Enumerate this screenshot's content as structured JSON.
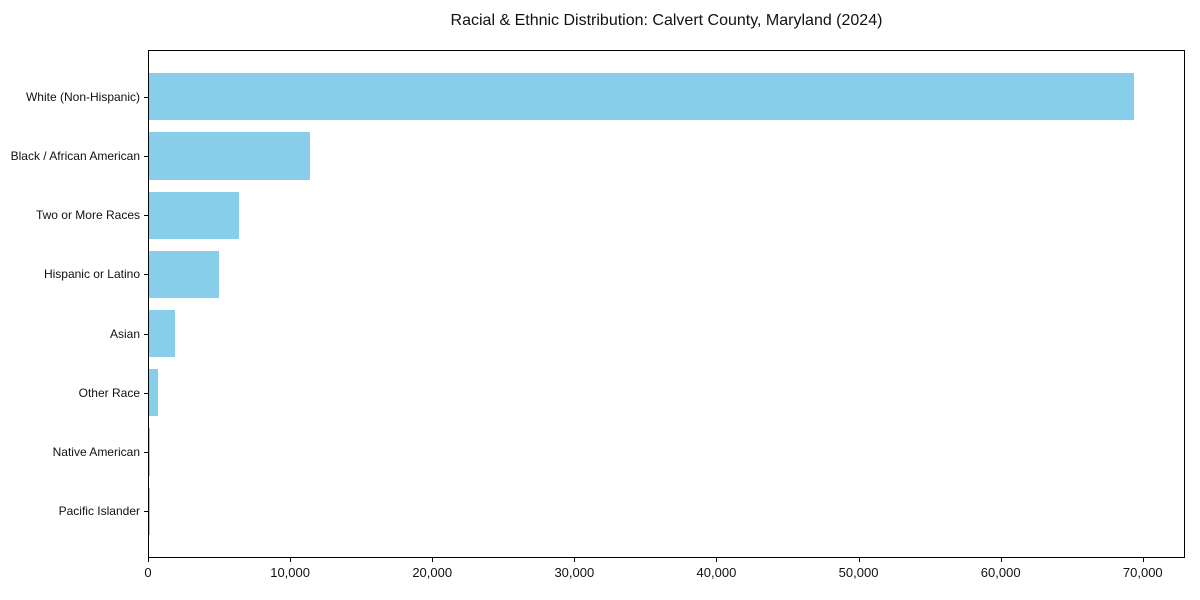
{
  "chart_data": {
    "type": "bar",
    "orientation": "horizontal",
    "title": "Racial & Ethnic Distribution: Calvert County, Maryland (2024)",
    "categories": [
      "White (Non-Hispanic)",
      "Black / African American",
      "Two or More Races",
      "Hispanic or Latino",
      "Asian",
      "Other Race",
      "Native American",
      "Pacific Islander"
    ],
    "values": [
      69400,
      11350,
      6350,
      4900,
      1850,
      600,
      90,
      30
    ],
    "x_ticks": [
      0,
      10000,
      20000,
      30000,
      40000,
      50000,
      60000,
      70000
    ],
    "x_tick_labels": [
      "0",
      "10,000",
      "20,000",
      "30,000",
      "40,000",
      "50,000",
      "60,000",
      "70,000"
    ],
    "xlim": [
      0,
      72900
    ],
    "xlabel": "",
    "ylabel": "",
    "bar_color": "#87CEEB",
    "axis_color": "#000000",
    "background_color": "#ffffff",
    "grid": false,
    "legend": "none"
  }
}
